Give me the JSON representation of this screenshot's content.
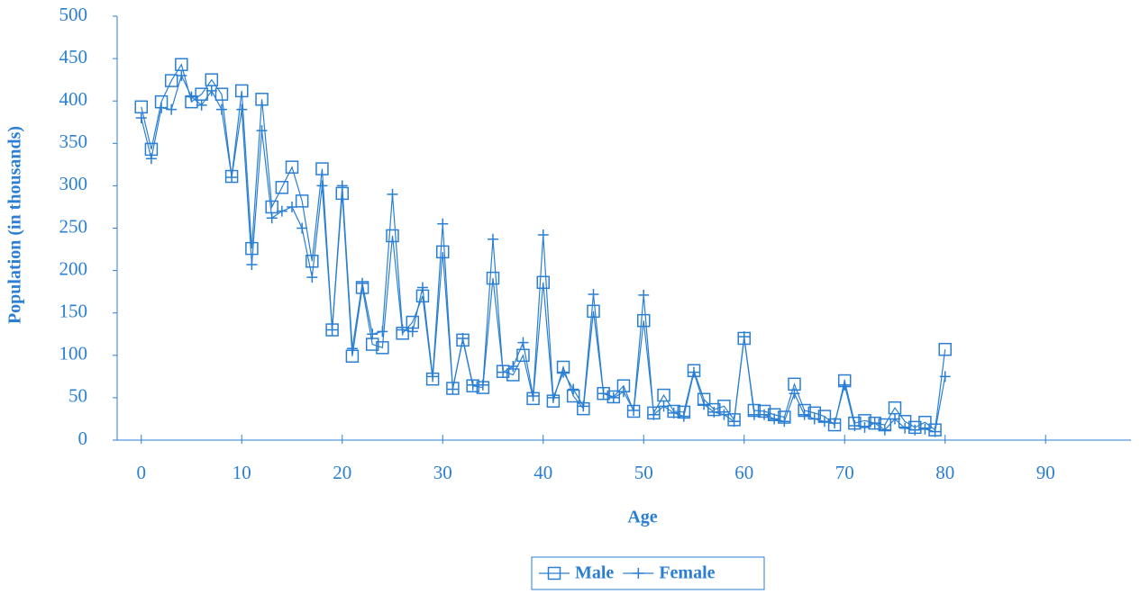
{
  "chart_data": {
    "type": "line",
    "x_label": "Age",
    "y_label": "Population (in thousands)",
    "x": [
      0,
      1,
      2,
      3,
      4,
      5,
      6,
      7,
      8,
      9,
      10,
      11,
      12,
      13,
      14,
      15,
      16,
      17,
      18,
      19,
      20,
      21,
      22,
      23,
      24,
      25,
      26,
      27,
      28,
      29,
      30,
      31,
      32,
      33,
      34,
      35,
      36,
      37,
      38,
      39,
      40,
      41,
      42,
      43,
      44,
      45,
      46,
      47,
      48,
      49,
      50,
      51,
      52,
      53,
      54,
      55,
      56,
      57,
      58,
      59,
      60,
      61,
      62,
      63,
      64,
      65,
      66,
      67,
      68,
      69,
      70,
      71,
      72,
      73,
      74,
      75,
      76,
      77,
      78,
      79,
      80
    ],
    "series": [
      {
        "name": "Male",
        "color": "#2a7fd4",
        "marker": "square",
        "values": [
          393,
          343,
          399,
          424,
          443,
          399,
          408,
          425,
          408,
          311,
          412,
          226,
          402,
          275,
          298,
          322,
          282,
          211,
          320,
          130,
          291,
          99,
          180,
          113,
          109,
          241,
          126,
          139,
          170,
          72,
          222,
          61,
          118,
          64,
          62,
          191,
          81,
          77,
          100,
          49,
          186,
          46,
          86,
          52,
          37,
          152,
          55,
          51,
          64,
          34,
          141,
          32,
          53,
          34,
          33,
          82,
          48,
          36,
          40,
          24,
          120,
          35,
          34,
          30,
          27,
          66,
          35,
          32,
          28,
          18,
          70,
          20,
          23,
          20,
          18,
          38,
          22,
          15,
          21,
          12,
          107
        ]
      },
      {
        "name": "Female",
        "color": "#2a7fd4",
        "marker": "plus",
        "values": [
          380,
          332,
          392,
          390,
          430,
          405,
          395,
          412,
          390,
          310,
          390,
          207,
          365,
          262,
          270,
          275,
          250,
          192,
          300,
          130,
          300,
          108,
          185,
          125,
          128,
          290,
          130,
          128,
          180,
          75,
          255,
          60,
          120,
          65,
          65,
          237,
          80,
          87,
          115,
          52,
          242,
          50,
          80,
          60,
          40,
          172,
          55,
          50,
          57,
          35,
          171,
          30,
          40,
          32,
          28,
          80,
          42,
          33,
          30,
          22,
          122,
          30,
          30,
          25,
          22,
          55,
          30,
          25,
          22,
          20,
          65,
          17,
          15,
          20,
          12,
          25,
          14,
          12,
          13,
          10,
          75
        ]
      }
    ],
    "xlim": [
      -2.4,
      98.5
    ],
    "xticks": [
      0,
      10,
      20,
      30,
      40,
      50,
      60,
      70,
      80,
      90
    ],
    "ylim": [
      0,
      500
    ],
    "yticks": [
      0,
      50,
      100,
      150,
      200,
      250,
      300,
      350,
      400,
      450,
      500
    ],
    "grid": false,
    "legend": "bottom"
  }
}
